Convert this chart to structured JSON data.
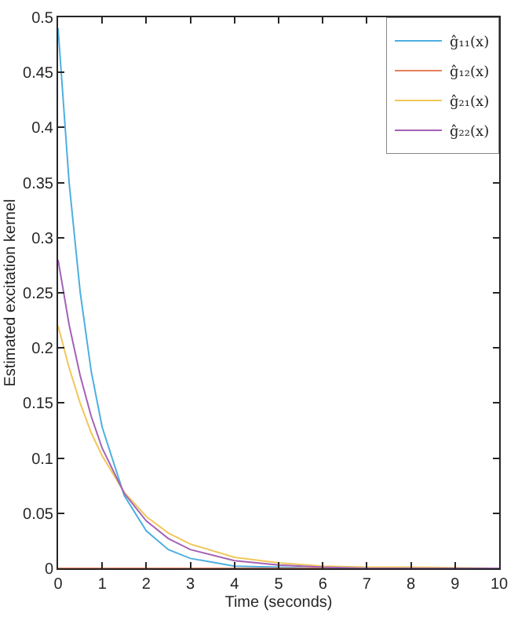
{
  "chart_data": {
    "type": "line",
    "xlabel": "Time (seconds)",
    "ylabel": "Estimated excitation kernel",
    "x": [
      0,
      0.25,
      0.5,
      0.75,
      1,
      1.5,
      2,
      2.5,
      3,
      4,
      5,
      6,
      7,
      8,
      10
    ],
    "series": [
      {
        "name": "ĝ₁₁(x)",
        "color": "#4dafe0",
        "values": [
          0.49,
          0.35,
          0.251,
          0.179,
          0.128,
          0.066,
          0.034,
          0.017,
          0.009,
          0.002,
          0.001,
          0,
          0,
          null,
          null
        ]
      },
      {
        "name": "ĝ₁₂(x)",
        "color": "#e5805a",
        "values": [
          0,
          0,
          0,
          0,
          0,
          0,
          0,
          0,
          0,
          0,
          0,
          0,
          0,
          0,
          0
        ]
      },
      {
        "name": "ĝ₂₁(x)",
        "color": "#f0c75a",
        "values": [
          0.22,
          0.182,
          0.15,
          0.123,
          0.102,
          0.069,
          0.047,
          0.032,
          0.022,
          0.01,
          0.005,
          0.002,
          0.001,
          0.001,
          0
        ]
      },
      {
        "name": "ĝ₂₂(x)",
        "color": "#a462b5",
        "values": [
          0.28,
          0.221,
          0.175,
          0.138,
          0.109,
          0.068,
          0.043,
          0.027,
          0.017,
          0.007,
          0.003,
          0.001,
          0,
          0,
          0
        ]
      }
    ],
    "xlim": [
      0,
      10
    ],
    "xticks": [
      0,
      1,
      2,
      3,
      4,
      5,
      6,
      7,
      8,
      9,
      10
    ],
    "ylim": [
      0,
      0.5
    ],
    "yticks": [
      0,
      0.05,
      0.1,
      0.15,
      0.2,
      0.25,
      0.3,
      0.35,
      0.4,
      0.45,
      0.5
    ],
    "grid": false,
    "legend": "top right",
    "marker": "none",
    "line_style": "solid"
  }
}
